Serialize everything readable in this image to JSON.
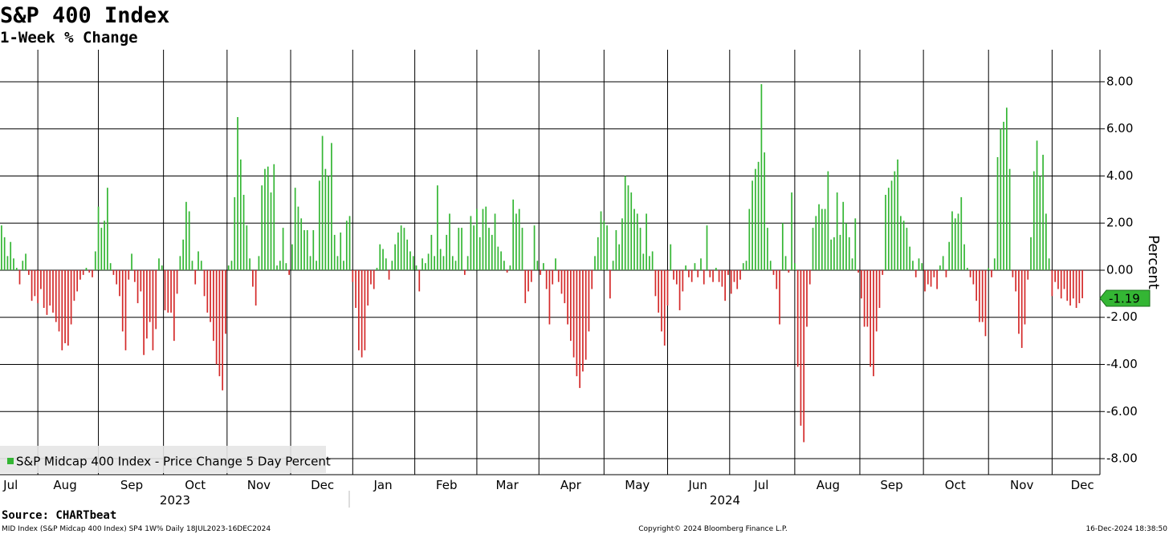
{
  "chart_data": {
    "type": "bar",
    "title": "S&P 400 Index",
    "subtitle": "1-Week % Change",
    "y_label": "Percent",
    "source": "Source: CHARTbeat",
    "footer": {
      "left": "MID Index (S&P Midcap 400 Index) SP4 1W% Daily 18JUL2023-16DEC2024",
      "center": "Copyright© 2024 Bloomberg Finance L.P.",
      "right": "16-Dec-2024 18:38:50"
    },
    "x_group_labels": [
      "2023",
      "2024"
    ],
    "categories": [
      null,
      null,
      null,
      "Jul",
      null,
      null,
      null,
      null,
      null,
      null,
      null,
      null,
      null,
      null,
      null,
      null,
      null,
      null,
      null,
      null,
      null,
      "Aug",
      null,
      null,
      null,
      null,
      null,
      null,
      null,
      null,
      null,
      null,
      null,
      null,
      null,
      null,
      null,
      null,
      null,
      null,
      null,
      null,
      null,
      "Sep",
      null,
      null,
      null,
      null,
      null,
      null,
      null,
      null,
      null,
      null,
      null,
      null,
      null,
      null,
      null,
      null,
      null,
      null,
      null,
      null,
      "Oct",
      null,
      null,
      null,
      null,
      null,
      null,
      null,
      null,
      null,
      null,
      null,
      null,
      null,
      null,
      null,
      null,
      null,
      null,
      null,
      null,
      "Nov",
      null,
      null,
      null,
      null,
      null,
      null,
      null,
      null,
      null,
      null,
      null,
      null,
      null,
      null,
      null,
      null,
      null,
      null,
      null,
      null,
      "Dec",
      null,
      null,
      null,
      null,
      null,
      null,
      null,
      null,
      null,
      null,
      null,
      null,
      null,
      null,
      null,
      null,
      null,
      null,
      null,
      "Jan",
      null,
      null,
      null,
      null,
      null,
      null,
      null,
      null,
      null,
      null,
      null,
      null,
      null,
      null,
      null,
      null,
      null,
      null,
      null,
      null,
      "Feb",
      null,
      null,
      null,
      null,
      null,
      null,
      null,
      null,
      null,
      null,
      null,
      null,
      null,
      null,
      null,
      null,
      null,
      null,
      null,
      "Mar",
      null,
      null,
      null,
      null,
      null,
      null,
      null,
      null,
      null,
      null,
      null,
      null,
      null,
      null,
      null,
      null,
      null,
      null,
      null,
      null,
      "Apr",
      null,
      null,
      null,
      null,
      null,
      null,
      null,
      null,
      null,
      null,
      null,
      null,
      null,
      null,
      null,
      null,
      null,
      null,
      null,
      null,
      null,
      "May",
      null,
      null,
      null,
      null,
      null,
      null,
      null,
      null,
      null,
      null,
      null,
      null,
      null,
      null,
      null,
      null,
      null,
      null,
      null,
      "Jun",
      null,
      null,
      null,
      null,
      null,
      null,
      null,
      null,
      null,
      null,
      null,
      null,
      null,
      null,
      null,
      null,
      null,
      null,
      null,
      null,
      "Jul",
      null,
      null,
      null,
      null,
      null,
      null,
      null,
      null,
      null,
      null,
      null,
      null,
      null,
      null,
      null,
      null,
      null,
      null,
      null,
      null,
      null,
      "Aug",
      null,
      null,
      null,
      null,
      null,
      null,
      null,
      null,
      null,
      null,
      null,
      null,
      null,
      null,
      null,
      null,
      null,
      null,
      null,
      null,
      "Sep",
      null,
      null,
      null,
      null,
      null,
      null,
      null,
      null,
      null,
      null,
      null,
      null,
      null,
      null,
      null,
      null,
      null,
      null,
      null,
      null,
      "Oct",
      null,
      null,
      null,
      null,
      null,
      null,
      null,
      null,
      null,
      null,
      null,
      null,
      null,
      null,
      null,
      null,
      null,
      null,
      null,
      null,
      null,
      "Nov",
      null,
      null,
      null,
      null,
      null,
      null,
      null,
      null,
      null,
      null,
      null,
      null,
      null,
      null,
      null,
      null,
      null,
      null,
      null,
      "Dec"
    ],
    "series": [
      {
        "name": "S&P Midcap 400 Index - Price Change 5 Day Percent",
        "color": "#34b634",
        "values": [
          1.9,
          1.4,
          0.6,
          1.2,
          0.5,
          0.1,
          -0.6,
          0.4,
          0.7,
          -0.2,
          -1.3,
          -1.1,
          -1.4,
          -0.8,
          -1.6,
          -1.9,
          -1.5,
          -1.8,
          -2.2,
          -2.6,
          -3.4,
          -3.1,
          -3.2,
          -2.3,
          -1.3,
          -0.9,
          -0.4,
          -0.2,
          0.1,
          -0.1,
          -0.3,
          0.8,
          2.7,
          1.8,
          2.1,
          3.5,
          0.3,
          -0.2,
          -0.6,
          -1.1,
          -2.6,
          -3.4,
          -0.4,
          0.7,
          -0.5,
          -1.4,
          -0.9,
          -3.6,
          -2.9,
          -2.2,
          -3.4,
          -2.5,
          0.5,
          0.2,
          -1.7,
          -1.8,
          -1.8,
          -3.0,
          -1.0,
          0.6,
          1.3,
          2.9,
          2.5,
          0.4,
          -0.6,
          0.8,
          0.4,
          -1.1,
          -1.8,
          -2.2,
          -3.0,
          -4.0,
          -4.5,
          -5.1,
          -2.7,
          0.2,
          0.4,
          3.1,
          6.5,
          4.7,
          3.2,
          1.9,
          0.5,
          -0.7,
          -1.5,
          0.6,
          3.6,
          4.3,
          4.4,
          3.3,
          4.5,
          0.2,
          0.4,
          1.8,
          0.3,
          -0.2,
          1.1,
          3.5,
          2.7,
          2.2,
          1.7,
          1.7,
          0.6,
          1.7,
          0.4,
          3.8,
          5.7,
          4.3,
          4.0,
          5.4,
          1.5,
          0.6,
          1.6,
          0.4,
          2.1,
          2.3,
          -0.5,
          -1.6,
          -3.4,
          -3.7,
          -3.4,
          -1.5,
          -0.6,
          -0.8,
          0.1,
          1.1,
          0.9,
          0.5,
          -0.4,
          0.4,
          1.1,
          1.6,
          1.9,
          1.8,
          1.3,
          0.8,
          0.6,
          0.2,
          -0.9,
          0.5,
          0.3,
          0.7,
          1.5,
          0.6,
          3.6,
          0.9,
          0.6,
          1.5,
          2.4,
          0.6,
          0.4,
          1.8,
          1.8,
          -0.2,
          0.6,
          2.3,
          1.9,
          2.6,
          1.4,
          2.6,
          2.7,
          1.8,
          1.5,
          2.4,
          1.0,
          0.8,
          0.4,
          -0.1,
          0.2,
          3.0,
          2.4,
          2.6,
          1.8,
          -1.4,
          -0.9,
          -0.5,
          1.9,
          0.4,
          -0.2,
          0.3,
          -0.8,
          -2.3,
          -0.6,
          0.5,
          -0.5,
          -1.0,
          -1.4,
          -2.3,
          -3.0,
          -3.7,
          -4.5,
          -5.0,
          -4.3,
          -3.8,
          -2.6,
          -0.8,
          0.6,
          1.4,
          2.5,
          2.1,
          1.9,
          -1.2,
          0.4,
          1.7,
          1.1,
          2.2,
          4.0,
          3.6,
          3.3,
          2.6,
          2.4,
          1.8,
          0.7,
          2.4,
          0.6,
          0.8,
          -1.1,
          -1.8,
          -2.6,
          -3.2,
          -1.5,
          1.1,
          -0.4,
          -0.6,
          -1.7,
          -0.9,
          0.2,
          -0.3,
          -0.5,
          0.3,
          -0.3,
          0.5,
          -0.6,
          1.9,
          -0.3,
          -0.5,
          0.1,
          -0.5,
          -0.7,
          -1.3,
          -0.2,
          -1.0,
          -0.5,
          -0.8,
          -0.4,
          0.3,
          0.4,
          2.6,
          3.8,
          4.3,
          4.6,
          7.9,
          5.0,
          1.8,
          0.4,
          -0.2,
          -0.8,
          -2.3,
          2.0,
          0.6,
          -0.1,
          3.3,
          0.3,
          -4.1,
          -6.6,
          -7.3,
          -2.4,
          -0.6,
          1.8,
          2.3,
          2.8,
          2.6,
          2.6,
          4.2,
          1.3,
          1.4,
          3.3,
          1.5,
          2.9,
          2.0,
          1.4,
          0.5,
          2.2,
          -0.1,
          -1.2,
          -2.4,
          -2.4,
          -4.1,
          -4.5,
          -2.6,
          -1.6,
          -0.2,
          3.2,
          3.5,
          3.8,
          4.2,
          4.7,
          2.3,
          2.1,
          1.8,
          1.0,
          0.4,
          -0.3,
          0.5,
          0.3,
          -0.9,
          -0.6,
          -0.7,
          -0.3,
          -0.8,
          0.2,
          0.6,
          -0.3,
          1.2,
          2.5,
          2.2,
          2.4,
          3.1,
          1.1,
          0.1,
          -0.3,
          -0.6,
          -1.3,
          -2.2,
          -2.2,
          -2.8,
          0.1,
          -0.3,
          0.5,
          4.8,
          6.0,
          6.3,
          6.9,
          4.3,
          -0.3,
          -0.9,
          -2.7,
          -3.3,
          -2.3,
          -0.4,
          1.4,
          4.2,
          5.5,
          4.0,
          4.9,
          2.4,
          0.5,
          -1.1,
          -0.5,
          -0.8,
          -1.2,
          -0.8,
          -1.3,
          -1.5,
          -1.2,
          -1.6,
          -1.4,
          -1.19
        ]
      }
    ],
    "negative_color": "#d42a2a",
    "ylim": [
      -8.68,
      9.36
    ],
    "yticks": [
      {
        "value": 8,
        "label": "8.00"
      },
      {
        "value": 6,
        "label": "6.00"
      },
      {
        "value": 4,
        "label": "4.00"
      },
      {
        "value": 2,
        "label": "2.00"
      },
      {
        "value": 0,
        "label": "0.00"
      },
      {
        "value": -2,
        "label": "-2.00"
      },
      {
        "value": -4,
        "label": "-4.00"
      },
      {
        "value": -6,
        "label": "-6.00"
      },
      {
        "value": -8,
        "label": "-8.00"
      }
    ],
    "grid": true,
    "legend": "lower left",
    "last_value_tag": true
  }
}
